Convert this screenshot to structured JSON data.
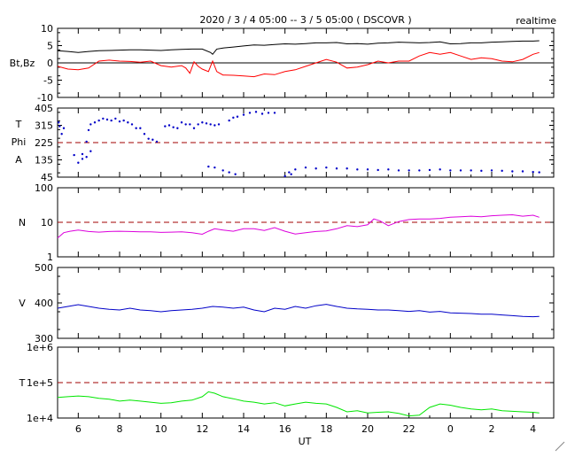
{
  "header": {
    "title": "2020 / 3 / 4   05:00 --  3 / 5   05:00 ( DSCOVR )",
    "mode": "realtime"
  },
  "x_axis": {
    "label": "UT",
    "ticks": [
      "6",
      "8",
      "10",
      "12",
      "14",
      "16",
      "18",
      "20",
      "22",
      "0",
      "2",
      "4"
    ]
  },
  "chart_data": [
    {
      "type": "line",
      "panel": "magnetic-field",
      "ylabel": "Bt,Bz",
      "ylim": [
        -10,
        10
      ],
      "yticks": [
        "10",
        "5",
        "0",
        "-5",
        "-10"
      ],
      "reference_line": 0,
      "series": [
        {
          "color": "#000000",
          "x": [
            5,
            5.5,
            6,
            6.5,
            7,
            7.5,
            8,
            8.5,
            9,
            9.5,
            10,
            10.5,
            11,
            11.5,
            12,
            12.4,
            12.5,
            12.7,
            13,
            13.5,
            14,
            14.5,
            15,
            15.5,
            16,
            16.5,
            17,
            17.5,
            18,
            18.5,
            19,
            19.5,
            20,
            20.5,
            21,
            21.5,
            22,
            22.5,
            23,
            23.5,
            24,
            24.5,
            25,
            25.5,
            26,
            26.5,
            27,
            27.5,
            28,
            28.3
          ],
          "y": [
            3.5,
            3.3,
            3.0,
            3.3,
            3.5,
            3.6,
            3.7,
            3.8,
            3.8,
            3.7,
            3.6,
            3.8,
            3.9,
            4.0,
            4.0,
            3.0,
            2.5,
            4.0,
            4.3,
            4.6,
            4.9,
            5.2,
            5.1,
            5.3,
            5.5,
            5.4,
            5.6,
            5.8,
            5.8,
            5.9,
            5.5,
            5.6,
            5.4,
            5.7,
            5.8,
            6.0,
            5.9,
            5.8,
            5.9,
            6.1,
            5.5,
            5.6,
            5.8,
            5.8,
            6.0,
            6.1,
            6.2,
            6.3,
            6.3,
            6.4
          ]
        },
        {
          "color": "#ff0000",
          "x": [
            5,
            5.5,
            6,
            6.5,
            7,
            7.5,
            8,
            8.5,
            9,
            9.5,
            10,
            10.5,
            11,
            11.2,
            11.4,
            11.6,
            11.8,
            12,
            12.3,
            12.5,
            12.7,
            13,
            13.5,
            14,
            14.5,
            15,
            15.5,
            16,
            16.5,
            17,
            17.5,
            18,
            18.5,
            19,
            19.5,
            20,
            20.5,
            21,
            21.5,
            22,
            22.5,
            23,
            23.5,
            24,
            24.5,
            25,
            25.5,
            26,
            26.5,
            27,
            27.5,
            28,
            28.3
          ],
          "y": [
            -1.0,
            -1.8,
            -2.0,
            -1.5,
            0.5,
            0.8,
            0.5,
            0.4,
            0.2,
            0.5,
            -0.8,
            -1.2,
            -0.8,
            -1.5,
            -3.0,
            0.3,
            -1.0,
            -1.8,
            -2.5,
            0.5,
            -2.5,
            -3.5,
            -3.6,
            -3.8,
            -4.0,
            -3.2,
            -3.4,
            -2.5,
            -2.0,
            -1.0,
            0.0,
            1.0,
            0.2,
            -1.5,
            -1.2,
            -0.5,
            0.5,
            0.0,
            0.5,
            0.5,
            2.0,
            3.0,
            2.5,
            3.0,
            2.0,
            1.0,
            1.5,
            1.2,
            0.5,
            0.3,
            1.0,
            2.5,
            3.0
          ]
        }
      ]
    },
    {
      "type": "scatter",
      "panel": "phi-angle",
      "ylabel": "T\nPhi\nA",
      "ylim": [
        45,
        405
      ],
      "yticks": [
        "405",
        "315",
        "225",
        "135",
        "45"
      ],
      "reference_line": 225,
      "series": [
        {
          "color": "#0000c8",
          "x": [
            5.05,
            5.1,
            5.2,
            5.3,
            6.2,
            6.4,
            6.5,
            6.6,
            6.8,
            7.0,
            7.2,
            7.4,
            7.6,
            7.8,
            8.0,
            8.2,
            8.4,
            8.6,
            8.8,
            9.0,
            9.2,
            9.4,
            9.6,
            9.8,
            10.2,
            10.4,
            10.6,
            10.8,
            11.0,
            11.2,
            11.4,
            11.6,
            11.8,
            12.0,
            12.2,
            12.4,
            12.6,
            12.8,
            13.3,
            13.5,
            13.7,
            14.0,
            14.3,
            14.6,
            14.9,
            15.2,
            15.5,
            16.5,
            17,
            17.5,
            18,
            18.5,
            19,
            19.5,
            20,
            20.5,
            21,
            21.5,
            22,
            22.5,
            23,
            23.5,
            24,
            24.5,
            25,
            25.5,
            26,
            26.5,
            27,
            27.5,
            28,
            28.3
          ],
          "y": [
            330,
            310,
            270,
            300,
            165,
            230,
            290,
            320,
            330,
            340,
            350,
            345,
            340,
            350,
            335,
            340,
            330,
            320,
            300,
            300,
            270,
            245,
            240,
            230,
            310,
            315,
            305,
            300,
            330,
            320,
            320,
            300,
            320,
            330,
            325,
            320,
            315,
            320,
            340,
            355,
            360,
            370,
            380,
            385,
            375,
            380,
            380,
            85,
            95,
            90,
            95,
            90,
            90,
            85,
            85,
            82,
            85,
            80,
            80,
            80,
            82,
            85,
            80,
            80,
            80,
            78,
            80,
            78,
            75,
            75,
            72,
            70
          ]
        },
        {
          "color": "#0000c8",
          "x": [
            5.8,
            6.0,
            6.2,
            6.4,
            6.6,
            12.3,
            12.6,
            13.0,
            13.3,
            13.6,
            16.0,
            16.2,
            16.3
          ],
          "y": [
            160,
            120,
            140,
            150,
            180,
            100,
            95,
            80,
            70,
            60,
            50,
            70,
            60
          ]
        }
      ]
    },
    {
      "type": "line",
      "panel": "density",
      "ylabel": "N",
      "ylim": [
        1,
        100
      ],
      "scale": "log",
      "yticks": [
        "100",
        "10",
        "1"
      ],
      "reference_line": 10,
      "series": [
        {
          "color": "#dc00dc",
          "x": [
            5,
            5.3,
            5.6,
            6,
            6.5,
            7,
            7.5,
            8,
            8.5,
            9,
            9.5,
            10,
            10.5,
            11,
            11.5,
            12,
            12.3,
            12.6,
            13,
            13.5,
            14,
            14.5,
            15,
            15.5,
            16,
            16.5,
            17,
            17.5,
            18,
            18.5,
            19,
            19.5,
            20,
            20.3,
            20.6,
            21,
            21.5,
            22,
            22.5,
            23,
            23.5,
            24,
            24.5,
            25,
            25.5,
            26,
            26.5,
            27,
            27.5,
            28,
            28.3
          ],
          "y": [
            3.5,
            5.0,
            5.5,
            6.0,
            5.4,
            5.2,
            5.4,
            5.5,
            5.4,
            5.3,
            5.3,
            5.1,
            5.2,
            5.3,
            5.0,
            4.5,
            5.5,
            6.5,
            6.0,
            5.5,
            6.5,
            6.5,
            5.8,
            7.0,
            5.5,
            4.6,
            5.0,
            5.4,
            5.6,
            6.5,
            8.0,
            7.5,
            8.5,
            12.5,
            11.0,
            8.0,
            10.5,
            12.0,
            12.5,
            12.5,
            13.0,
            14.0,
            14.5,
            15.0,
            14.5,
            15.5,
            16.0,
            16.5,
            15.0,
            16.0,
            14.0
          ]
        }
      ]
    },
    {
      "type": "line",
      "panel": "velocity",
      "ylabel": "V",
      "ylim": [
        300,
        500
      ],
      "yticks": [
        "500",
        "400",
        "300"
      ],
      "series": [
        {
          "color": "#0000c8",
          "x": [
            5,
            5.5,
            6,
            6.5,
            7,
            7.5,
            8,
            8.5,
            9,
            9.5,
            10,
            10.5,
            11,
            11.5,
            12,
            12.5,
            13,
            13.5,
            14,
            14.5,
            15,
            15.5,
            16,
            16.5,
            17,
            17.5,
            18,
            18.5,
            19,
            19.5,
            20,
            20.5,
            21,
            21.5,
            22,
            22.5,
            23,
            23.5,
            24,
            24.5,
            25,
            25.5,
            26,
            26.5,
            27,
            27.5,
            28,
            28.3
          ],
          "y": [
            385,
            390,
            395,
            390,
            385,
            382,
            380,
            385,
            380,
            378,
            375,
            378,
            380,
            382,
            385,
            390,
            388,
            385,
            388,
            380,
            375,
            385,
            382,
            390,
            385,
            392,
            396,
            390,
            385,
            383,
            382,
            380,
            380,
            378,
            376,
            378,
            374,
            376,
            372,
            371,
            370,
            368,
            368,
            366,
            364,
            362,
            361,
            362
          ]
        }
      ]
    },
    {
      "type": "line",
      "panel": "temperature",
      "ylabel": "T",
      "ylim": [
        10000,
        1000000
      ],
      "scale": "log",
      "yticks": [
        "1e+6",
        "1e+5",
        "1e+4"
      ],
      "reference_line": 100000,
      "series": [
        {
          "color": "#00e600",
          "x": [
            5,
            5.5,
            6,
            6.5,
            7,
            7.5,
            8,
            8.5,
            9,
            9.5,
            10,
            10.5,
            11,
            11.5,
            12,
            12.3,
            12.6,
            13,
            13.5,
            14,
            14.5,
            15,
            15.5,
            16,
            16.5,
            17,
            17.5,
            18,
            18.5,
            19,
            19.5,
            20,
            20.5,
            21,
            21.5,
            22,
            22.5,
            23,
            23.5,
            24,
            24.5,
            25,
            25.5,
            26,
            26.5,
            27,
            27.5,
            28,
            28.3
          ],
          "y": [
            38000,
            40000,
            42000,
            40000,
            36000,
            34000,
            30000,
            32000,
            30000,
            28000,
            26000,
            27000,
            30000,
            32000,
            40000,
            55000,
            50000,
            40000,
            35000,
            30000,
            28000,
            25000,
            27000,
            22000,
            25000,
            28000,
            26000,
            25000,
            20000,
            15000,
            16000,
            14000,
            14500,
            15000,
            13500,
            11500,
            12000,
            20000,
            25000,
            23000,
            20000,
            18000,
            17000,
            18000,
            16000,
            15500,
            15000,
            14500,
            14000
          ]
        }
      ]
    }
  ]
}
